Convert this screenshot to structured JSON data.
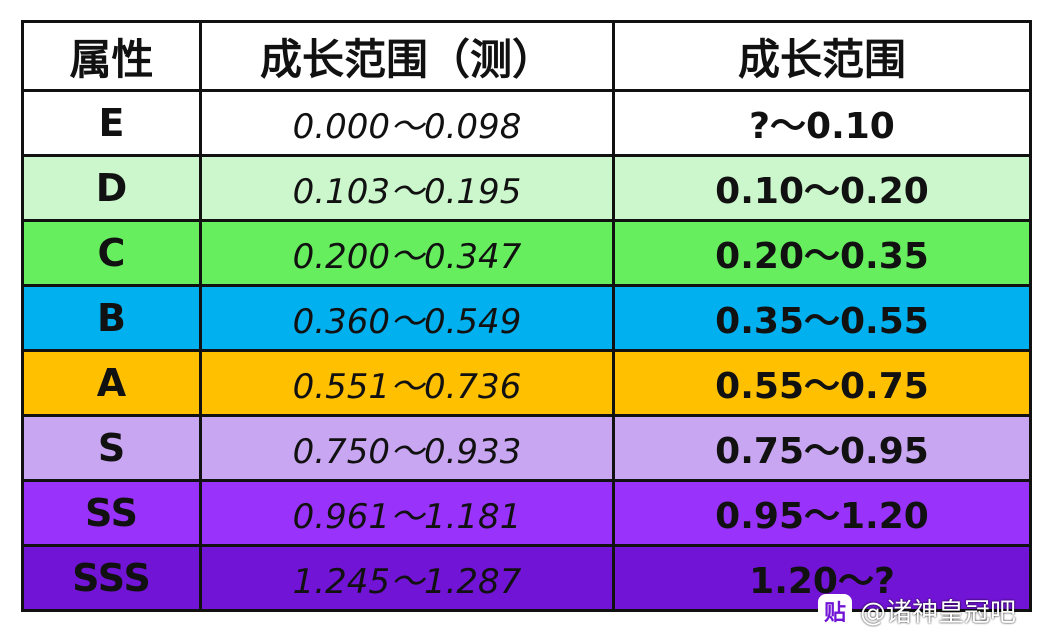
{
  "table": {
    "header": [
      "属性",
      "成长范围（测）",
      "成长范围"
    ],
    "rows": [
      [
        "E",
        "0.000～0.098",
        "?～0.10"
      ],
      [
        "D",
        "0.103～0.195",
        "0.10～0.20"
      ],
      [
        "C",
        "0.200～0.347",
        "0.20～0.35"
      ],
      [
        "B",
        "0.360～0.549",
        "0.35～0.55"
      ],
      [
        "A",
        "0.551～0.736",
        "0.55～0.75"
      ],
      [
        "S",
        "0.750～0.933",
        "0.75～0.95"
      ],
      [
        "SS",
        "0.961～1.181",
        "0.95～1.20"
      ],
      [
        "SSS",
        "1.245～1.287",
        "1.20～?"
      ]
    ]
  },
  "watermark": {
    "icon": "贴",
    "text": "@诸神皇冠吧"
  }
}
